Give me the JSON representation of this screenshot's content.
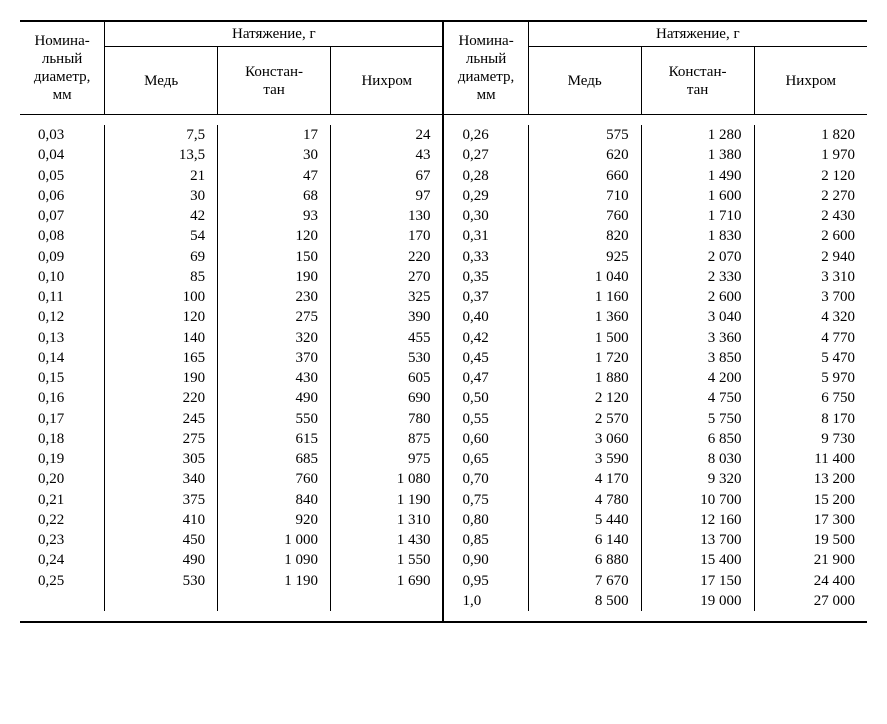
{
  "headers": {
    "diameter": "Номина-\nльный\nдиаметр,\nмм",
    "tension_group": "Натяжение, г",
    "copper": "Медь",
    "constantan": "Констан-\nтан",
    "nichrome": "Нихром"
  },
  "table": {
    "type": "table",
    "font_family": "Times New Roman",
    "header_fontsize": 15,
    "body_fontsize": 15,
    "text_color": "#000000",
    "background_color": "#ffffff",
    "rule_color": "#000000",
    "double_rule_between_halves": true,
    "columns": [
      {
        "key": "d",
        "align": "left"
      },
      {
        "key": "cu",
        "align": "right"
      },
      {
        "key": "con",
        "align": "right"
      },
      {
        "key": "ni",
        "align": "right"
      }
    ],
    "left_rows": [
      {
        "d": "0,03",
        "cu": "7,5",
        "con": "17",
        "ni": "24"
      },
      {
        "d": "0,04",
        "cu": "13,5",
        "con": "30",
        "ni": "43"
      },
      {
        "d": "0,05",
        "cu": "21",
        "con": "47",
        "ni": "67"
      },
      {
        "d": "0,06",
        "cu": "30",
        "con": "68",
        "ni": "97"
      },
      {
        "d": "0,07",
        "cu": "42",
        "con": "93",
        "ni": "130"
      },
      {
        "d": "0,08",
        "cu": "54",
        "con": "120",
        "ni": "170"
      },
      {
        "d": "0,09",
        "cu": "69",
        "con": "150",
        "ni": "220"
      },
      {
        "d": "0,10",
        "cu": "85",
        "con": "190",
        "ni": "270"
      },
      {
        "d": "0,11",
        "cu": "100",
        "con": "230",
        "ni": "325"
      },
      {
        "d": "0,12",
        "cu": "120",
        "con": "275",
        "ni": "390"
      },
      {
        "d": "0,13",
        "cu": "140",
        "con": "320",
        "ni": "455"
      },
      {
        "d": "0,14",
        "cu": "165",
        "con": "370",
        "ni": "530"
      },
      {
        "d": "0,15",
        "cu": "190",
        "con": "430",
        "ni": "605"
      },
      {
        "d": "0,16",
        "cu": "220",
        "con": "490",
        "ni": "690"
      },
      {
        "d": "0,17",
        "cu": "245",
        "con": "550",
        "ni": "780"
      },
      {
        "d": "0,18",
        "cu": "275",
        "con": "615",
        "ni": "875"
      },
      {
        "d": "0,19",
        "cu": "305",
        "con": "685",
        "ni": "975"
      },
      {
        "d": "0,20",
        "cu": "340",
        "con": "760",
        "ni": "1 080"
      },
      {
        "d": "0,21",
        "cu": "375",
        "con": "840",
        "ni": "1 190"
      },
      {
        "d": "0,22",
        "cu": "410",
        "con": "920",
        "ni": "1 310"
      },
      {
        "d": "0,23",
        "cu": "450",
        "con": "1 000",
        "ni": "1 430"
      },
      {
        "d": "0,24",
        "cu": "490",
        "con": "1 090",
        "ni": "1 550"
      },
      {
        "d": "0,25",
        "cu": "530",
        "con": "1 190",
        "ni": "1 690"
      },
      {
        "d": "",
        "cu": "",
        "con": "",
        "ni": ""
      }
    ],
    "right_rows": [
      {
        "d": "0,26",
        "cu": "575",
        "con": "1 280",
        "ni": "1 820"
      },
      {
        "d": "0,27",
        "cu": "620",
        "con": "1 380",
        "ni": "1 970"
      },
      {
        "d": "0,28",
        "cu": "660",
        "con": "1 490",
        "ni": "2 120"
      },
      {
        "d": "0,29",
        "cu": "710",
        "con": "1 600",
        "ni": "2 270"
      },
      {
        "d": "0,30",
        "cu": "760",
        "con": "1 710",
        "ni": "2 430"
      },
      {
        "d": "0,31",
        "cu": "820",
        "con": "1 830",
        "ni": "2 600"
      },
      {
        "d": "0,33",
        "cu": "925",
        "con": "2 070",
        "ni": "2 940"
      },
      {
        "d": "0,35",
        "cu": "1 040",
        "con": "2 330",
        "ni": "3 310"
      },
      {
        "d": "0,37",
        "cu": "1 160",
        "con": "2 600",
        "ni": "3 700"
      },
      {
        "d": "0,40",
        "cu": "1 360",
        "con": "3 040",
        "ni": "4 320"
      },
      {
        "d": "0,42",
        "cu": "1 500",
        "con": "3 360",
        "ni": "4 770"
      },
      {
        "d": "0,45",
        "cu": "1 720",
        "con": "3 850",
        "ni": "5 470"
      },
      {
        "d": "0,47",
        "cu": "1 880",
        "con": "4 200",
        "ni": "5 970"
      },
      {
        "d": "0,50",
        "cu": "2 120",
        "con": "4 750",
        "ni": "6 750"
      },
      {
        "d": "0,55",
        "cu": "2 570",
        "con": "5 750",
        "ni": "8 170"
      },
      {
        "d": "0,60",
        "cu": "3 060",
        "con": "6 850",
        "ni": "9 730"
      },
      {
        "d": "0,65",
        "cu": "3 590",
        "con": "8 030",
        "ni": "11 400"
      },
      {
        "d": "0,70",
        "cu": "4 170",
        "con": "9 320",
        "ni": "13 200"
      },
      {
        "d": "0,75",
        "cu": "4 780",
        "con": "10 700",
        "ni": "15 200"
      },
      {
        "d": "0,80",
        "cu": "5 440",
        "con": "12 160",
        "ni": "17 300"
      },
      {
        "d": "0,85",
        "cu": "6 140",
        "con": "13 700",
        "ni": "19 500"
      },
      {
        "d": "0,90",
        "cu": "6 880",
        "con": "15 400",
        "ni": "21 900"
      },
      {
        "d": "0,95",
        "cu": "7 670",
        "con": "17 150",
        "ni": "24 400"
      },
      {
        "d": "1,0",
        "cu": "8 500",
        "con": "19 000",
        "ni": "27 000"
      }
    ]
  }
}
